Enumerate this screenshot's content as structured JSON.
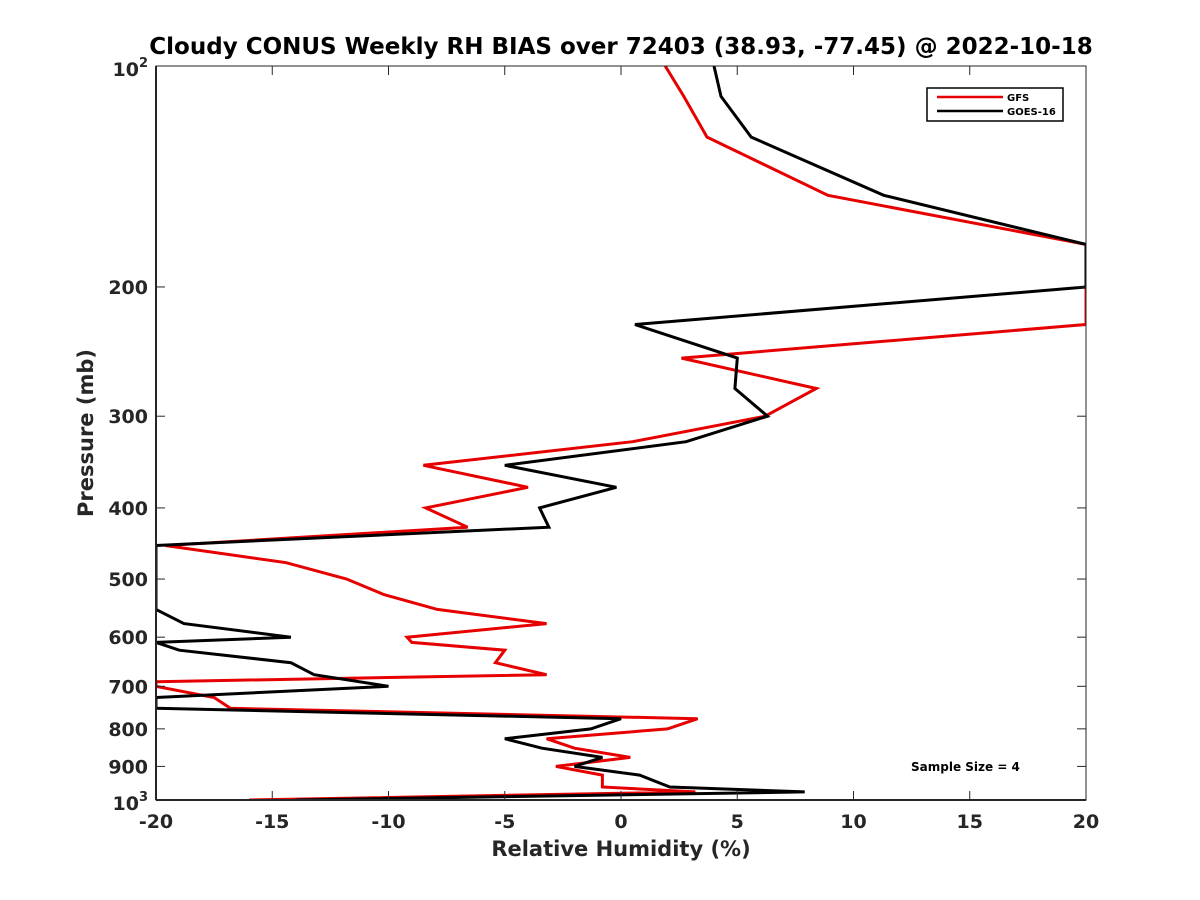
{
  "chart_data": {
    "type": "line",
    "title": "Cloudy CONUS Weekly RH BIAS over 72403 (38.93, -77.45) @ 2022-10-18",
    "xlabel": "Relative Humidity (%)",
    "ylabel": "Pressure (mb)",
    "xlim": [
      -20,
      20
    ],
    "ylim": [
      100,
      1000
    ],
    "yscale": "log",
    "y_reversed": true,
    "grid": false,
    "legend_position": "top-right",
    "x_ticks": [
      -20,
      -15,
      -10,
      -5,
      0,
      5,
      10,
      15,
      20
    ],
    "x_tick_labels": [
      "-20",
      "-15",
      "-10",
      "-5",
      "0",
      "5",
      "10",
      "15",
      "20"
    ],
    "y_ticks": [
      200,
      300,
      400,
      500,
      600,
      700,
      800,
      900
    ],
    "y_tick_labels": [
      "200",
      "300",
      "400",
      "500",
      "600",
      "700",
      "800",
      "900"
    ],
    "y_top_label": {
      "base": "10",
      "exp": "2"
    },
    "y_bottom_label": {
      "base": "10",
      "exp": "3"
    },
    "annotation": "Sample Size = 4",
    "series": [
      {
        "name": "GFS",
        "color": "#e60000",
        "points": [
          [
            -16.0,
            1000
          ],
          [
            3.2,
            975
          ],
          [
            -0.8,
            960
          ],
          [
            -0.8,
            925
          ],
          [
            -2.8,
            900
          ],
          [
            0.4,
            875
          ],
          [
            -2.0,
            850
          ],
          [
            -3.2,
            825
          ],
          [
            2.0,
            800
          ],
          [
            3.3,
            775
          ],
          [
            -16.8,
            750
          ],
          [
            -17.5,
            725
          ],
          [
            -20.0,
            700
          ],
          [
            -20.0,
            690
          ],
          [
            -3.2,
            675
          ],
          [
            -5.4,
            650
          ],
          [
            -5.0,
            625
          ],
          [
            -9.0,
            610
          ],
          [
            -9.2,
            600
          ],
          [
            -3.2,
            575
          ],
          [
            -7.9,
            550
          ],
          [
            -10.2,
            525
          ],
          [
            -11.8,
            500
          ],
          [
            -14.4,
            475
          ],
          [
            -19.6,
            450
          ],
          [
            -6.6,
            425
          ],
          [
            -8.4,
            400
          ],
          [
            -4.0,
            375
          ],
          [
            -8.5,
            350
          ],
          [
            0.5,
            325
          ],
          [
            6.2,
            300
          ],
          [
            8.4,
            275
          ],
          [
            2.6,
            250
          ],
          [
            20.0,
            225
          ],
          [
            20.0,
            200
          ],
          [
            20.0,
            175
          ],
          [
            8.9,
            150
          ],
          [
            3.7,
            125
          ],
          [
            2.7,
            110
          ],
          [
            1.9,
            100
          ]
        ]
      },
      {
        "name": "GOES-16",
        "color": "#000000",
        "points": [
          [
            -14.0,
            1000
          ],
          [
            7.9,
            975
          ],
          [
            2.1,
            960
          ],
          [
            0.8,
            925
          ],
          [
            -2.0,
            900
          ],
          [
            -0.8,
            875
          ],
          [
            -3.4,
            850
          ],
          [
            -5.0,
            825
          ],
          [
            -1.3,
            800
          ],
          [
            0.0,
            775
          ],
          [
            -20.0,
            750
          ],
          [
            -20.0,
            725
          ],
          [
            -10.0,
            700
          ],
          [
            -13.2,
            675
          ],
          [
            -14.2,
            650
          ],
          [
            -19.0,
            625
          ],
          [
            -20.0,
            610
          ],
          [
            -14.2,
            600
          ],
          [
            -18.8,
            575
          ],
          [
            -20.0,
            550
          ],
          [
            -20.0,
            525
          ],
          [
            -20.0,
            500
          ],
          [
            -20.0,
            475
          ],
          [
            -20.0,
            450
          ],
          [
            -3.1,
            425
          ],
          [
            -3.5,
            400
          ],
          [
            -0.2,
            375
          ],
          [
            -5.0,
            350
          ],
          [
            2.8,
            325
          ],
          [
            6.3,
            300
          ],
          [
            4.9,
            275
          ],
          [
            5.0,
            250
          ],
          [
            0.6,
            225
          ],
          [
            20.0,
            200
          ],
          [
            20.0,
            175
          ],
          [
            11.3,
            150
          ],
          [
            5.6,
            125
          ],
          [
            4.3,
            110
          ],
          [
            4.0,
            100
          ]
        ]
      }
    ]
  }
}
